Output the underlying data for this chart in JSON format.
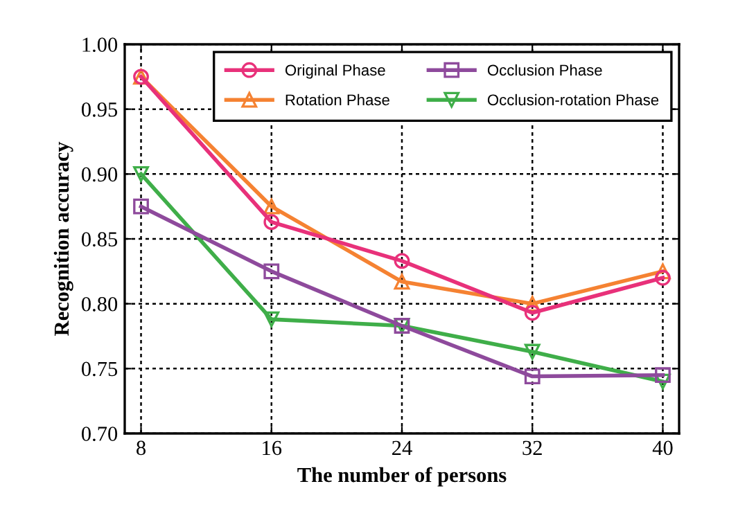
{
  "chart_data": {
    "type": "line",
    "xlabel": "The number of persons",
    "ylabel": "Recognition accuracy",
    "x": [
      8,
      16,
      24,
      32,
      40
    ],
    "xlim": [
      7,
      41
    ],
    "xticks": [
      8,
      16,
      24,
      32,
      40
    ],
    "ylim": [
      0.7,
      1.0
    ],
    "yticks": [
      {
        "value": 0.7,
        "label": "0.70"
      },
      {
        "value": 0.75,
        "label": "0.75"
      },
      {
        "value": 0.8,
        "label": "0.80"
      },
      {
        "value": 0.85,
        "label": "0.85"
      },
      {
        "value": 0.9,
        "label": "0.90"
      },
      {
        "value": 0.95,
        "label": "0.95"
      },
      {
        "value": 1.0,
        "label": "1.00"
      }
    ],
    "grid": true,
    "legend": "top right",
    "series": [
      {
        "name": "Original Phase",
        "color": "#e8317a",
        "marker": "circle",
        "values": [
          0.975,
          0.863,
          0.833,
          0.793,
          0.82
        ]
      },
      {
        "name": "Rotation Phase",
        "color": "#f58232",
        "marker": "triangle",
        "values": [
          0.975,
          0.875,
          0.817,
          0.8,
          0.825
        ]
      },
      {
        "name": "Occlusion Phase",
        "color": "#8e4a9c",
        "marker": "square",
        "values": [
          0.875,
          0.825,
          0.783,
          0.744,
          0.745
        ]
      },
      {
        "name": "Occlusion-rotation Phase",
        "color": "#3fae49",
        "marker": "triangle_down",
        "values": [
          0.9,
          0.788,
          0.783,
          0.763,
          0.74
        ]
      }
    ]
  }
}
